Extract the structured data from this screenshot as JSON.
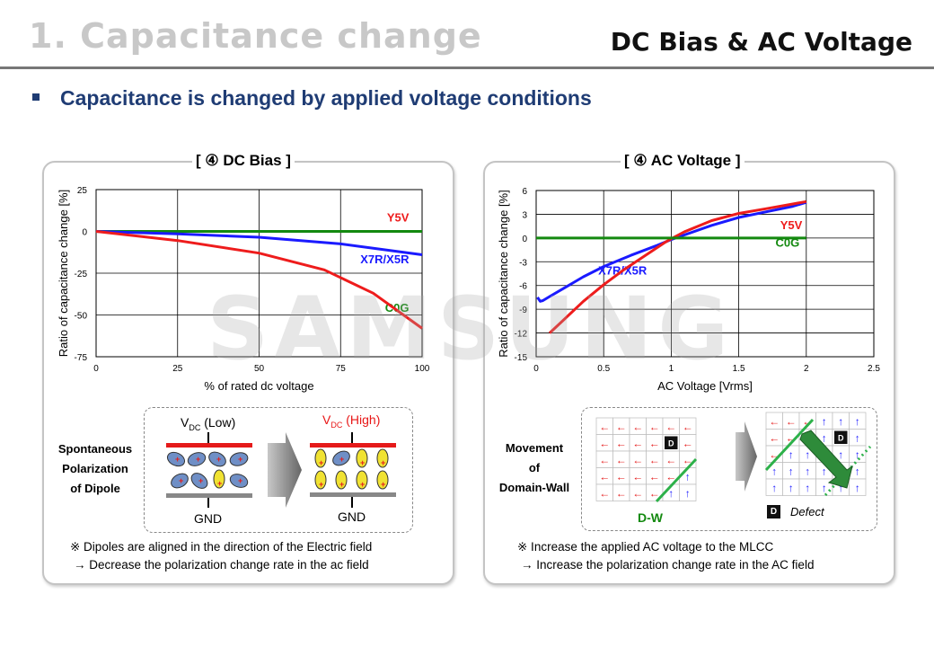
{
  "header": {
    "section": "1. Capacitance change",
    "topic": "DC Bias & AC Voltage"
  },
  "subtitle": "Capacitance is changed by applied voltage conditions",
  "watermark": "SAMSUNG",
  "colors": {
    "title_blue": "#1f3c74",
    "x7r": "#1a1aff",
    "y5v": "#ee1c1c",
    "c0g": "#13890f"
  },
  "dc": {
    "title": "[ ④ DC Bias ]",
    "diagram": {
      "label_lines": [
        "Spontaneous",
        "Polarization",
        "of Dipole"
      ],
      "vdc_low_prefix": "V",
      "vdc_low_sub": "DC",
      "vdc_low_suffix": " (Low)",
      "vdc_high_prefix": "V",
      "vdc_high_sub": "DC",
      "vdc_high_suffix": " (High)",
      "gnd": "GND"
    },
    "notes": [
      "※ Dipoles are aligned in the direction of the Electric field",
      "→ Decrease the polarization change rate in the ac field"
    ]
  },
  "ac": {
    "title": "[ ④ AC Voltage ]",
    "diagram": {
      "label_lines": [
        "Movement",
        "of",
        "Domain-Wall"
      ],
      "dw": "D-W",
      "defect_box": "D",
      "defect": "Defect"
    },
    "notes": [
      "※ Increase the applied AC voltage to the MLCC",
      "→ Increase the polarization change rate in the AC field"
    ]
  },
  "chart_data": [
    {
      "type": "line",
      "xlabel": "% of rated dc voltage",
      "ylabel": "Ratio of capacitance change [%]",
      "xlim": [
        0,
        100
      ],
      "ylim": [
        -75,
        25
      ],
      "xticks": [
        0,
        25,
        50,
        75,
        100
      ],
      "yticks": [
        25,
        0,
        -25,
        -50,
        -75
      ],
      "series": [
        {
          "name": "C0G",
          "color": "#13890f",
          "x": [
            0,
            100
          ],
          "y": [
            0,
            0
          ]
        },
        {
          "name": "X7R/X5R",
          "color": "#1a1aff",
          "x": [
            0,
            25,
            50,
            75,
            100
          ],
          "y": [
            0,
            -1.5,
            -3.5,
            -7.5,
            -14
          ]
        },
        {
          "name": "Y5V",
          "color": "#ee1c1c",
          "x": [
            0,
            25,
            50,
            70,
            85,
            100
          ],
          "y": [
            0,
            -5.5,
            -13,
            -23,
            -37,
            -58
          ]
        }
      ]
    },
    {
      "type": "line",
      "xlabel": "AC Voltage [Vrms]",
      "ylabel": "Ratio of capacitance change [%]",
      "xlim": [
        0,
        2.5
      ],
      "ylim": [
        -15,
        6
      ],
      "xticks": [
        0,
        0.5,
        1,
        1.5,
        2,
        2.5
      ],
      "yticks": [
        6,
        3,
        0,
        -3,
        -6,
        -9,
        -12,
        -15
      ],
      "series": [
        {
          "name": "X7R/X5R",
          "color": "#1a1aff",
          "x": [
            0.01,
            0.03,
            0.05,
            0.1,
            0.2,
            0.35,
            0.5,
            0.7,
            0.9,
            1,
            1.1,
            1.3,
            1.5,
            1.7,
            1.9,
            2
          ],
          "y": [
            -7.5,
            -8,
            -7.9,
            -7.4,
            -6.4,
            -4.9,
            -3.6,
            -2.2,
            -0.9,
            -0.2,
            0.4,
            1.6,
            2.6,
            3.3,
            4,
            4.5
          ]
        },
        {
          "name": "Y5V",
          "color": "#ee1c1c",
          "x": [
            0.1,
            0.2,
            0.35,
            0.5,
            0.65,
            0.8,
            0.95,
            1,
            1.1,
            1.3,
            1.5,
            1.7,
            1.9,
            2
          ],
          "y": [
            -12,
            -10.4,
            -8,
            -5.9,
            -4,
            -2.3,
            -0.6,
            -0.1,
            0.8,
            2.2,
            3.1,
            3.7,
            4.3,
            4.6
          ]
        },
        {
          "name": "C0G",
          "color": "#13890f",
          "x": [
            0,
            2
          ],
          "y": [
            0,
            0
          ]
        }
      ]
    }
  ]
}
